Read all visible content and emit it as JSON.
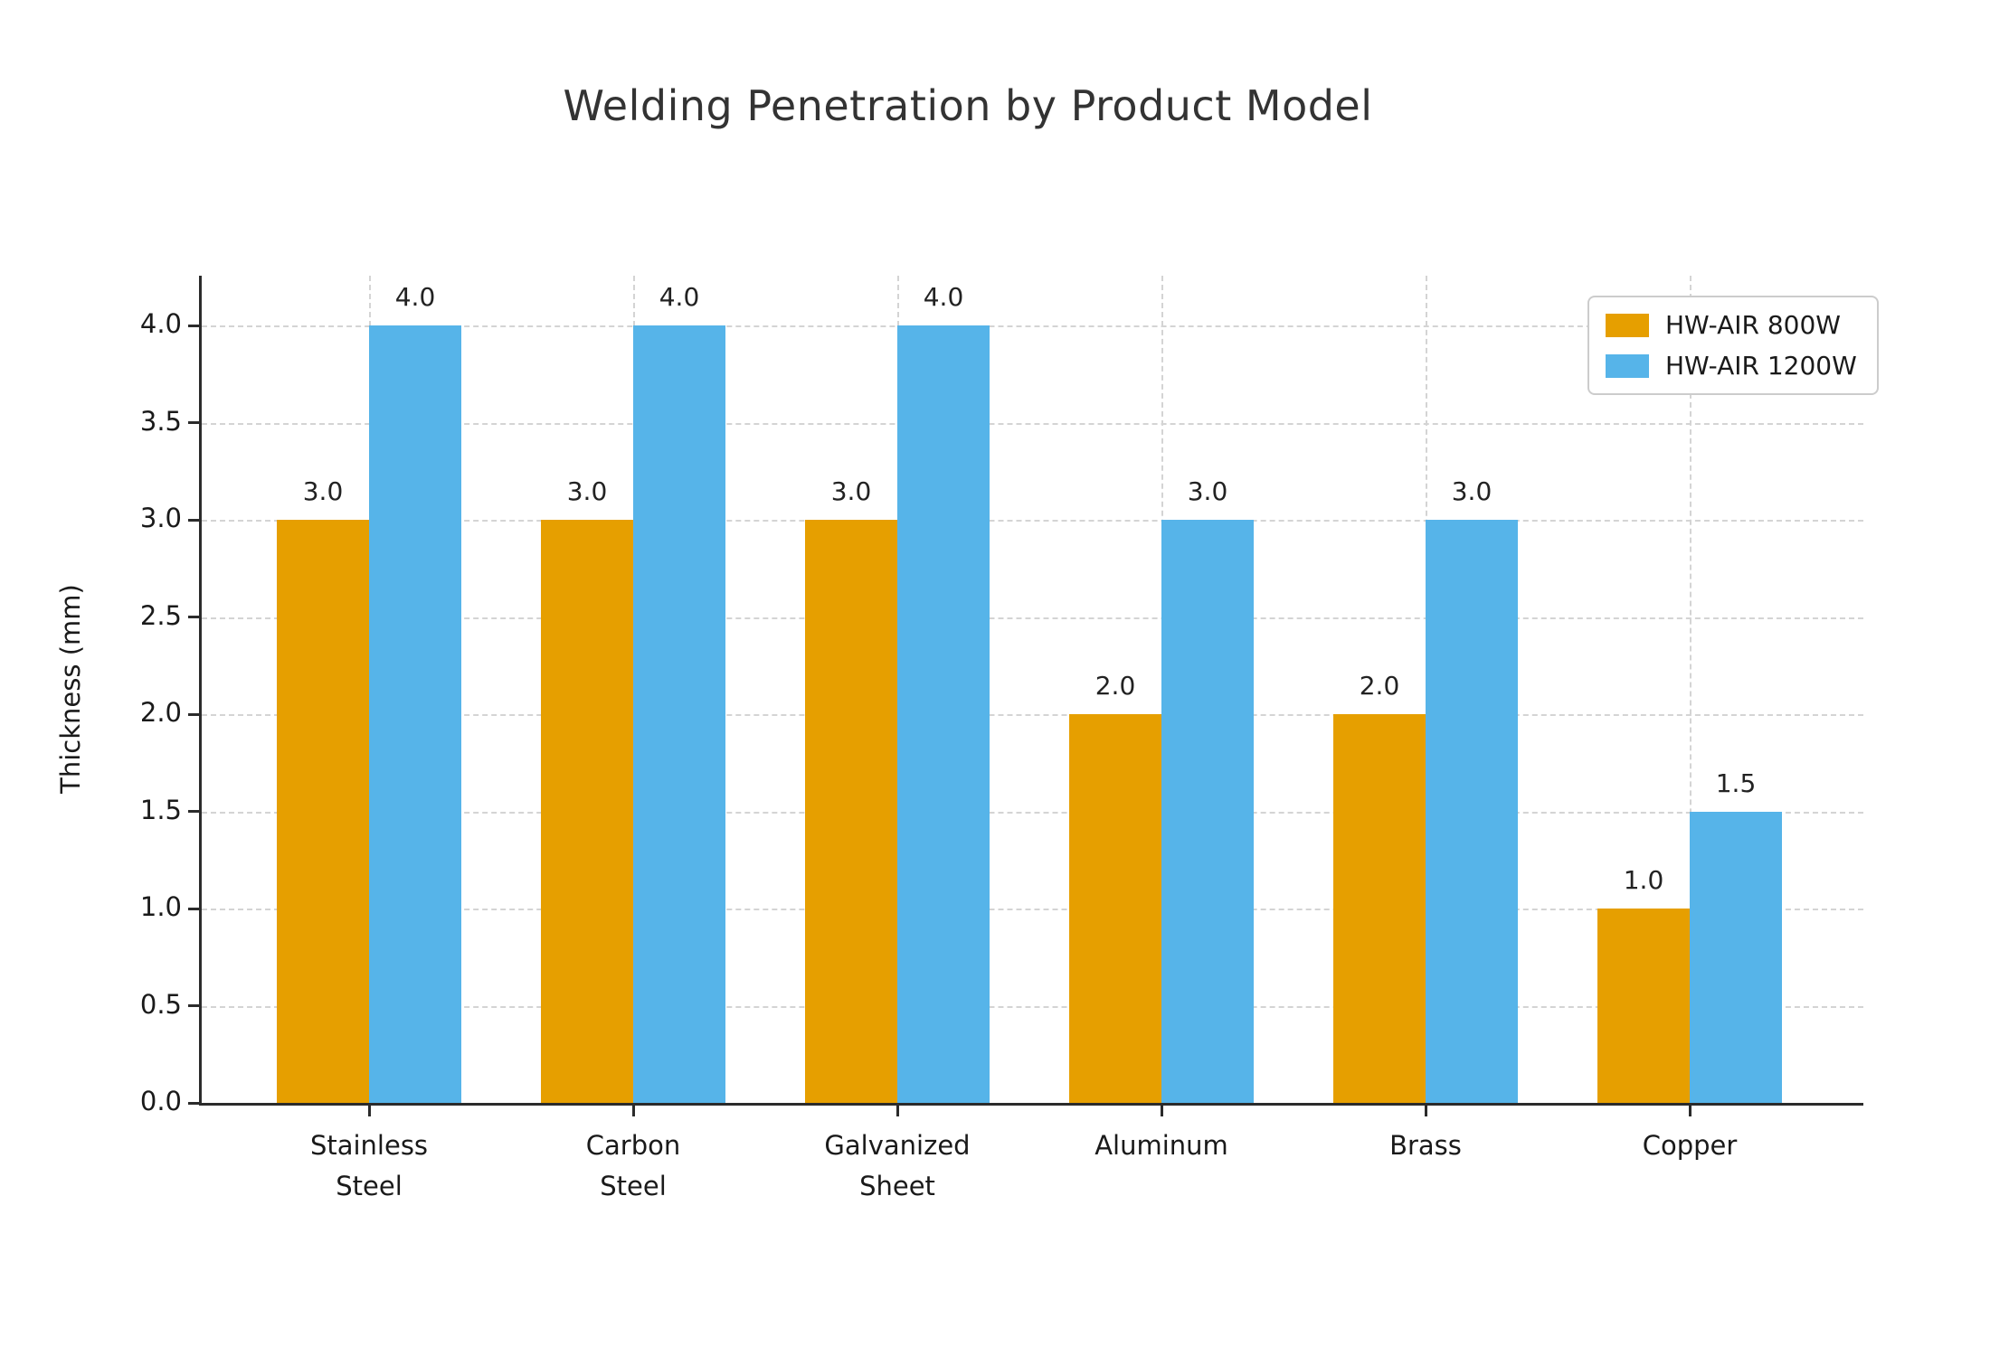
{
  "chart_data": {
    "type": "bar",
    "title": "Welding Penetration by Product Model",
    "xlabel": "",
    "ylabel": "Thickness (mm)",
    "categories": [
      "Stainless\nSteel",
      "Carbon\nSteel",
      "Galvanized\nSheet",
      "Aluminum",
      "Brass",
      "Copper"
    ],
    "series": [
      {
        "name": "HW-AIR 800W",
        "color": "#E69F00",
        "values": [
          3.0,
          3.0,
          3.0,
          2.0,
          2.0,
          1.0
        ]
      },
      {
        "name": "HW-AIR 1200W",
        "color": "#56B4E9",
        "values": [
          4.0,
          4.0,
          4.0,
          3.0,
          3.0,
          1.5
        ]
      }
    ],
    "yticks": [
      "0.0",
      "0.5",
      "1.0",
      "1.5",
      "2.0",
      "2.5",
      "3.0",
      "3.5",
      "4.0"
    ],
    "ylim": [
      0,
      4.25
    ],
    "grid": true,
    "grid_style": "dashed",
    "legend_position": "upper right",
    "value_labels": [
      [
        "3.0",
        "3.0",
        "3.0",
        "2.0",
        "2.0",
        "1.0"
      ],
      [
        "4.0",
        "4.0",
        "4.0",
        "3.0",
        "3.0",
        "1.5"
      ]
    ],
    "colors": {
      "series_800w": "#E69F00",
      "series_1200w": "#56B4E9",
      "text": "#1a1a1a",
      "grid": "#d4d4d4",
      "spine": "#2b2b2b",
      "background": "#ffffff"
    }
  }
}
